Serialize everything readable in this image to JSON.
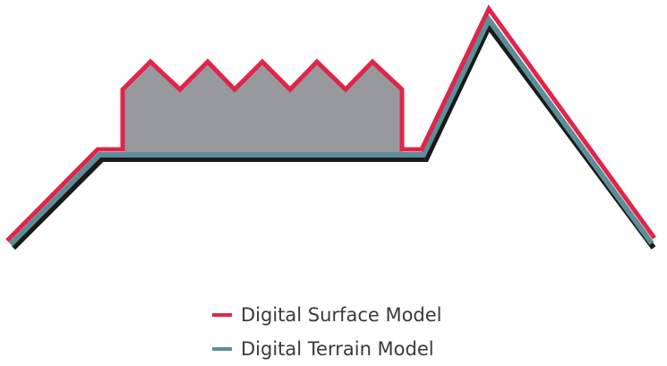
{
  "colors": {
    "dsm_line": "#e0254a",
    "dtm_line": "#5a8f99",
    "ground_shadow": "#1a1a1a",
    "building_fill": "#97999c",
    "legend_text": "#3a3a3a"
  },
  "legend": [
    {
      "label": "Digital Surface Model",
      "color": "#e0254a"
    },
    {
      "label": "Digital Terrain Model",
      "color": "#5a8f99"
    }
  ]
}
